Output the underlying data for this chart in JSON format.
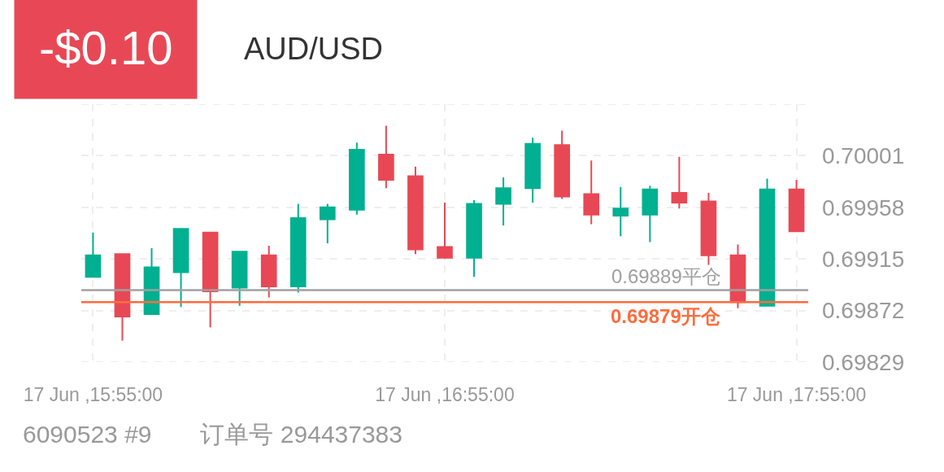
{
  "chart_data": {
    "type": "candlestick",
    "title": "AUD/USD",
    "annotations": [
      "-$0.10",
      "6090523 #9",
      "订单号 294437383"
    ],
    "categories": [
      "17 Jun ,15:55:00",
      null,
      null,
      null,
      null,
      null,
      null,
      null,
      null,
      null,
      null,
      null,
      "17 Jun ,16:55:00",
      null,
      null,
      null,
      null,
      null,
      null,
      null,
      null,
      null,
      null,
      null,
      "17 Jun ,17:55:00"
    ],
    "ohlc": [
      [
        0.699,
        0.69937,
        0.699,
        0.69918
      ],
      [
        0.69919,
        0.69919,
        0.69847,
        0.69867
      ],
      [
        0.69869,
        0.69924,
        0.69869,
        0.69908
      ],
      [
        0.69904,
        0.6994,
        0.69875,
        0.6994
      ],
      [
        0.69937,
        0.69937,
        0.69858,
        0.69888
      ],
      [
        0.69891,
        0.69921,
        0.69876,
        0.69921
      ],
      [
        0.69918,
        0.69926,
        0.69883,
        0.69892
      ],
      [
        0.69892,
        0.69961,
        0.69887,
        0.69949
      ],
      [
        0.69948,
        0.69961,
        0.69928,
        0.69958
      ],
      [
        0.69956,
        0.70012,
        0.69952,
        0.70006
      ],
      [
        0.70002,
        0.70026,
        0.69974,
        0.69981
      ],
      [
        0.69984,
        0.69992,
        0.69919,
        0.69923
      ],
      [
        0.69925,
        0.69962,
        0.69915,
        0.69916
      ],
      [
        0.69916,
        0.69964,
        0.699,
        0.69961
      ],
      [
        0.69961,
        0.69983,
        0.69943,
        0.69974
      ],
      [
        0.69974,
        0.70016,
        0.69962,
        0.70011
      ],
      [
        0.7001,
        0.70022,
        0.69965,
        0.69967
      ],
      [
        0.69969,
        0.69997,
        0.69944,
        0.69952
      ],
      [
        0.69951,
        0.69975,
        0.69934,
        0.69957
      ],
      [
        0.69952,
        0.69976,
        0.69929,
        0.69973
      ],
      [
        0.6997,
        0.7,
        0.69957,
        0.69962
      ],
      [
        0.69963,
        0.6997,
        0.6991,
        0.69918
      ],
      [
        0.69918,
        0.69927,
        0.69874,
        0.69879
      ],
      [
        0.69876,
        0.69982,
        0.69876,
        0.69973
      ],
      [
        0.69973,
        0.69981,
        0.69938,
        0.69938
      ]
    ],
    "colors": [
      "#00b090",
      "#e84855",
      "#00b090",
      "#00b090",
      "#e84855",
      "#00b090",
      "#e84855",
      "#00b090",
      "#00b090",
      "#00b090",
      "#e84855",
      "#e84855",
      "#e84855",
      "#00b090",
      "#00b090",
      "#00b090",
      "#e84855",
      "#e84855",
      "#00b090",
      "#00b090",
      "#e84855",
      "#e84855",
      "#e84855",
      "#00b090",
      "#e84855"
    ],
    "ylim": [
      0.69829,
      0.70044
    ],
    "yticks": [
      0.69829,
      0.69872,
      0.69915,
      0.69958,
      0.70001,
      {
        "value": 0.70044,
        "label": null
      }
    ],
    "ref_lines": [
      {
        "axis": "y",
        "value": 0.69889,
        "label": "0.69889平仓",
        "color": "#a0a0a0"
      },
      {
        "axis": "y",
        "value": 0.69879,
        "label": "0.69879开仓",
        "color": "#ff6b3d"
      }
    ],
    "grid": true
  }
}
